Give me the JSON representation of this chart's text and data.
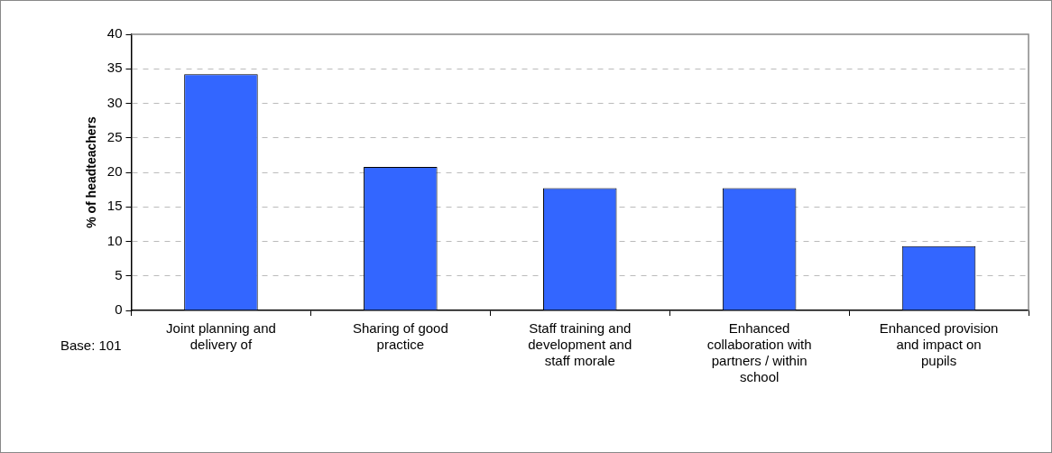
{
  "chart_data": {
    "type": "bar",
    "ylabel": "% of headteachers",
    "categories": [
      "Joint planning and delivery of",
      "Sharing of good practice",
      "Staff training and development and staff morale",
      "Enhanced collaboration with partners / within school",
      "Enhanced provision and impact on pupils"
    ],
    "values": [
      34.2,
      20.8,
      17.7,
      17.7,
      9.3
    ],
    "color": "#3366ff",
    "ylim": [
      0,
      40
    ],
    "yticks": [
      0,
      5,
      10,
      15,
      20,
      25,
      30,
      35,
      40
    ],
    "grid": "y",
    "annotations": [
      "Base: 101"
    ]
  }
}
